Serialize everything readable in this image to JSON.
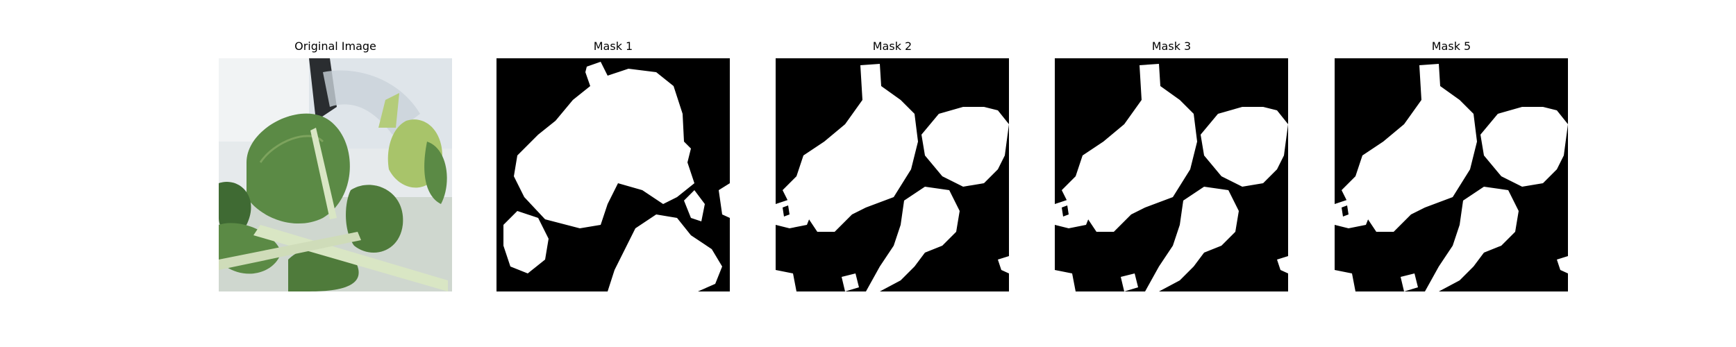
{
  "panels": [
    {
      "title": "Original Image",
      "kind": "photo"
    },
    {
      "title": "Mask 1",
      "kind": "mask"
    },
    {
      "title": "Mask 2",
      "kind": "mask"
    },
    {
      "title": "Mask 3",
      "kind": "mask"
    },
    {
      "title": "Mask 5",
      "kind": "mask"
    }
  ],
  "colors": {
    "mask_background": "#000000",
    "mask_foreground": "#ffffff",
    "leaf_dark": "#3f6a33",
    "leaf_mid": "#5b8a45",
    "leaf_light": "#a8c46a",
    "stem": "#d9e6c4",
    "photo_background": "#e6eaec"
  }
}
